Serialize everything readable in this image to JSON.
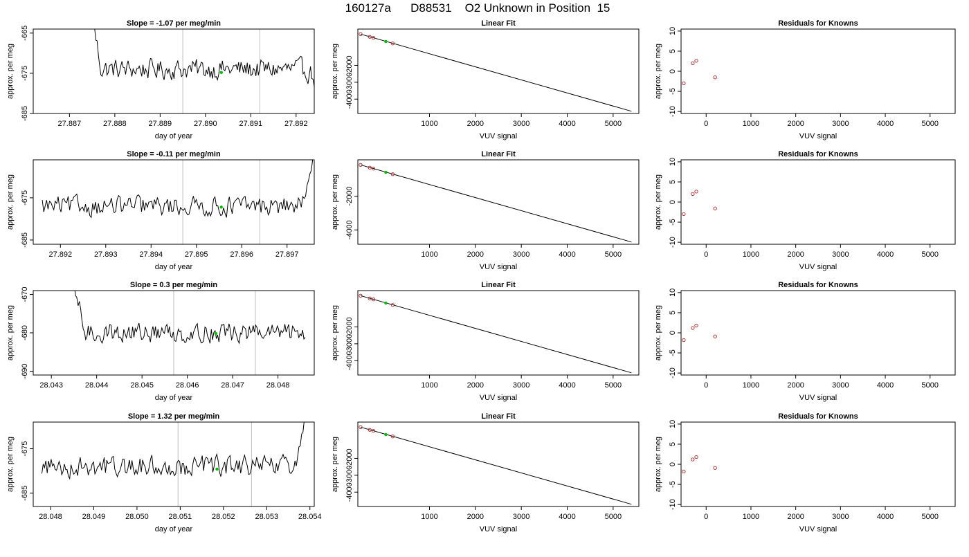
{
  "figure": {
    "title": "160127a      D88531    O2 Unknown in Position  15"
  },
  "chart_data": [
    {
      "type": "line",
      "panel": "drift",
      "row": 0,
      "title": "Slope =  -1.07  per meg/min",
      "xlabel": "day of year",
      "ylabel": "approx. per meg",
      "xlim": [
        27.8862,
        27.8924
      ],
      "ylim": [
        -685,
        -664
      ],
      "xticks": [
        27.887,
        27.888,
        27.889,
        27.89,
        27.891,
        27.892
      ],
      "xtick_labels": [
        "27.887",
        "27.888",
        "27.889",
        "27.890",
        "27.891",
        "27.892"
      ],
      "yticks": [
        -685,
        -675,
        -665
      ],
      "ytick_labels": [
        "-685",
        "-675",
        "-665"
      ],
      "vlines": [
        27.8895,
        27.8912
      ],
      "trace": {
        "x_start": 27.8875,
        "x_end": 27.8924,
        "n": 180,
        "baseline": -674,
        "start": -661,
        "settle": 27.8877,
        "tail": -676,
        "noise": 1.6
      },
      "marker": {
        "x": 27.89035,
        "y": -674.8,
        "color": "#00c000"
      }
    },
    {
      "type": "scatter",
      "panel": "fit",
      "row": 0,
      "title": "Linear Fit",
      "xlabel": "VUV signal",
      "ylabel": "approx. per meg",
      "xlim": [
        -560,
        5560
      ],
      "ylim": [
        -4850,
        150
      ],
      "xticks": [
        1000,
        2000,
        3000,
        4000,
        5000
      ],
      "xtick_labels": [
        "1000",
        "2000",
        "3000",
        "4000",
        "5000"
      ],
      "yticks": [
        -4000,
        -3000,
        -2000
      ],
      "ytick_labels": [
        "-4000",
        "-3000",
        "-2000"
      ],
      "line": [
        [
          -500,
          -150
        ],
        [
          5400,
          -4720
        ]
      ],
      "points": [
        [
          -500,
          -150
        ],
        [
          -300,
          -310
        ],
        [
          -220,
          -370
        ],
        [
          200,
          -700
        ]
      ],
      "point_color": "#b22222",
      "marker": {
        "x": 50,
        "y": -590,
        "color": "#00c000"
      }
    },
    {
      "type": "scatter",
      "panel": "resid",
      "row": 0,
      "title": "Residuals for Knowns",
      "xlabel": "VUV signal",
      "ylabel": "approx. per meg",
      "xlim": [
        -560,
        5560
      ],
      "ylim": [
        -10.5,
        10.5
      ],
      "xticks": [
        0,
        1000,
        2000,
        3000,
        4000,
        5000
      ],
      "xtick_labels": [
        "0",
        "1000",
        "2000",
        "3000",
        "4000",
        "5000"
      ],
      "yticks": [
        -10,
        -5,
        0,
        5,
        10
      ],
      "ytick_labels": [
        "-10",
        "-5",
        "0",
        "5",
        "10"
      ],
      "points": [
        [
          -500,
          -3.0
        ],
        [
          -300,
          2.0
        ],
        [
          -220,
          2.6
        ],
        [
          200,
          -1.5
        ]
      ],
      "point_color": "#b22222"
    },
    {
      "type": "line",
      "panel": "drift",
      "row": 1,
      "title": "Slope =  -0.11  per meg/min",
      "xlabel": "day of year",
      "ylabel": "approx. per meg",
      "xlim": [
        27.8914,
        27.8976
      ],
      "ylim": [
        -686,
        -666
      ],
      "xticks": [
        27.892,
        27.893,
        27.894,
        27.895,
        27.896,
        27.897
      ],
      "xtick_labels": [
        "27.892",
        "27.893",
        "27.894",
        "27.895",
        "27.896",
        "27.897"
      ],
      "yticks": [
        -685,
        -675
      ],
      "ytick_labels": [
        "-685",
        "-675"
      ],
      "vlines": [
        27.8947,
        27.8964
      ],
      "trace": {
        "x_start": 27.8916,
        "x_end": 27.8976,
        "n": 190,
        "baseline": -677,
        "start": -677,
        "settle": 27.8916,
        "tail": -666,
        "noise": 1.5
      },
      "marker": {
        "x": 27.89555,
        "y": -677.2,
        "color": "#00c000"
      }
    },
    {
      "type": "scatter",
      "panel": "fit",
      "row": 1,
      "title": "Linear Fit",
      "xlabel": "VUV signal",
      "ylabel": "approx. per meg",
      "xlim": [
        -560,
        5560
      ],
      "ylim": [
        -4850,
        150
      ],
      "xticks": [
        1000,
        2000,
        3000,
        4000,
        5000
      ],
      "xtick_labels": [
        "1000",
        "2000",
        "3000",
        "4000",
        "5000"
      ],
      "yticks": [
        -4000,
        -2000
      ],
      "ytick_labels": [
        "-4000",
        "-2000"
      ],
      "line": [
        [
          -500,
          -150
        ],
        [
          5400,
          -4720
        ]
      ],
      "points": [
        [
          -500,
          -150
        ],
        [
          -300,
          -310
        ],
        [
          -220,
          -370
        ],
        [
          200,
          -700
        ]
      ],
      "point_color": "#b22222",
      "marker": {
        "x": 50,
        "y": -590,
        "color": "#00c000"
      }
    },
    {
      "type": "scatter",
      "panel": "resid",
      "row": 1,
      "title": "Residuals for Knowns",
      "xlabel": "VUV signal",
      "ylabel": "approx. per meg",
      "xlim": [
        -560,
        5560
      ],
      "ylim": [
        -10.5,
        10.5
      ],
      "xticks": [
        0,
        1000,
        2000,
        3000,
        4000,
        5000
      ],
      "xtick_labels": [
        "0",
        "1000",
        "2000",
        "3000",
        "4000",
        "5000"
      ],
      "yticks": [
        -10,
        -5,
        0,
        5,
        10
      ],
      "ytick_labels": [
        "-10",
        "-5",
        "0",
        "5",
        "10"
      ],
      "points": [
        [
          -500,
          -3.0
        ],
        [
          -300,
          2.0
        ],
        [
          -220,
          2.6
        ],
        [
          200,
          -1.6
        ]
      ],
      "point_color": "#b22222"
    },
    {
      "type": "line",
      "panel": "drift",
      "row": 2,
      "title": "Slope =  0.3  per meg/min",
      "xlabel": "day of year",
      "ylabel": "approx. per meg",
      "xlim": [
        28.0426,
        28.0488
      ],
      "ylim": [
        -691,
        -669
      ],
      "xticks": [
        28.043,
        28.044,
        28.045,
        28.046,
        28.047,
        28.048
      ],
      "xtick_labels": [
        "28.043",
        "28.044",
        "28.045",
        "28.046",
        "28.047",
        "28.048"
      ],
      "yticks": [
        -690,
        -680,
        -670
      ],
      "ytick_labels": [
        "-690",
        "-680",
        "-670"
      ],
      "vlines": [
        28.0457,
        28.0475
      ],
      "trace": {
        "x_start": 28.04345,
        "x_end": 28.0486,
        "n": 185,
        "baseline": -680,
        "start": -666,
        "settle": 28.04375,
        "tail": -680,
        "noise": 1.6
      },
      "marker": {
        "x": 28.04663,
        "y": -680.2,
        "color": "#00c000"
      }
    },
    {
      "type": "scatter",
      "panel": "fit",
      "row": 2,
      "title": "Linear Fit",
      "xlabel": "VUV signal",
      "ylabel": "approx. per meg",
      "xlim": [
        -560,
        5560
      ],
      "ylim": [
        -4850,
        150
      ],
      "xticks": [
        1000,
        2000,
        3000,
        4000,
        5000
      ],
      "xtick_labels": [
        "1000",
        "2000",
        "3000",
        "4000",
        "5000"
      ],
      "yticks": [
        -4000,
        -3000,
        -2000
      ],
      "ytick_labels": [
        "-4000",
        "-3000",
        "-2000"
      ],
      "line": [
        [
          -500,
          -150
        ],
        [
          5400,
          -4720
        ]
      ],
      "points": [
        [
          -500,
          -150
        ],
        [
          -300,
          -310
        ],
        [
          -220,
          -370
        ],
        [
          200,
          -700
        ]
      ],
      "point_color": "#b22222",
      "marker": {
        "x": 50,
        "y": -590,
        "color": "#00c000"
      }
    },
    {
      "type": "scatter",
      "panel": "resid",
      "row": 2,
      "title": "Residuals for Knowns",
      "xlabel": "VUV signal",
      "ylabel": "approx. per meg",
      "xlim": [
        -560,
        5560
      ],
      "ylim": [
        -10.5,
        10.5
      ],
      "xticks": [
        0,
        1000,
        2000,
        3000,
        4000,
        5000
      ],
      "xtick_labels": [
        "0",
        "1000",
        "2000",
        "3000",
        "4000",
        "5000"
      ],
      "yticks": [
        -10,
        -5,
        0,
        5,
        10
      ],
      "ytick_labels": [
        "-10",
        "-5",
        "0",
        "5",
        "10"
      ],
      "points": [
        [
          -500,
          -1.8
        ],
        [
          -300,
          1.2
        ],
        [
          -220,
          1.8
        ],
        [
          200,
          -0.9
        ]
      ],
      "point_color": "#b22222"
    },
    {
      "type": "line",
      "panel": "drift",
      "row": 3,
      "title": "Slope =  1.32  per meg/min",
      "xlabel": "day of year",
      "ylabel": "approx. per meg",
      "xlim": [
        28.0476,
        28.0541
      ],
      "ylim": [
        -688,
        -669
      ],
      "xticks": [
        28.048,
        28.049,
        28.05,
        28.051,
        28.052,
        28.053,
        28.054
      ],
      "xtick_labels": [
        "28.048",
        "28.049",
        "28.050",
        "28.051",
        "28.052",
        "28.053",
        "28.054"
      ],
      "yticks": [
        -685,
        -675
      ],
      "ytick_labels": [
        "-685",
        "-675"
      ],
      "vlines": [
        28.05095,
        28.05265
      ],
      "trace": {
        "x_start": 28.0478,
        "x_end": 28.0539,
        "n": 200,
        "baseline": -679,
        "start": -679,
        "settle": 28.0478,
        "tail": -668,
        "noise": 1.5
      },
      "marker": {
        "x": 28.05185,
        "y": -679.6,
        "color": "#00c000"
      }
    },
    {
      "type": "scatter",
      "panel": "fit",
      "row": 3,
      "title": "Linear Fit",
      "xlabel": "VUV signal",
      "ylabel": "approx. per meg",
      "xlim": [
        -560,
        5560
      ],
      "ylim": [
        -4850,
        150
      ],
      "xticks": [
        1000,
        2000,
        3000,
        4000,
        5000
      ],
      "xtick_labels": [
        "1000",
        "2000",
        "3000",
        "4000",
        "5000"
      ],
      "yticks": [
        -4000,
        -3000,
        -2000
      ],
      "ytick_labels": [
        "-4000",
        "-3000",
        "-2000"
      ],
      "line": [
        [
          -500,
          -150
        ],
        [
          5400,
          -4720
        ]
      ],
      "points": [
        [
          -500,
          -150
        ],
        [
          -300,
          -310
        ],
        [
          -220,
          -370
        ],
        [
          200,
          -700
        ]
      ],
      "point_color": "#b22222",
      "marker": {
        "x": 50,
        "y": -590,
        "color": "#00c000"
      }
    },
    {
      "type": "scatter",
      "panel": "resid",
      "row": 3,
      "title": "Residuals for Knowns",
      "xlabel": "VUV signal",
      "ylabel": "approx. per meg",
      "xlim": [
        -560,
        5560
      ],
      "ylim": [
        -10.5,
        10.5
      ],
      "xticks": [
        0,
        1000,
        2000,
        3000,
        4000,
        5000
      ],
      "xtick_labels": [
        "0",
        "1000",
        "2000",
        "3000",
        "4000",
        "5000"
      ],
      "yticks": [
        -10,
        -5,
        0,
        5,
        10
      ],
      "ytick_labels": [
        "-10",
        "-5",
        "0",
        "5",
        "10"
      ],
      "points": [
        [
          -500,
          -1.8
        ],
        [
          -300,
          1.2
        ],
        [
          -220,
          1.8
        ],
        [
          200,
          -0.9
        ]
      ],
      "point_color": "#b22222"
    }
  ]
}
